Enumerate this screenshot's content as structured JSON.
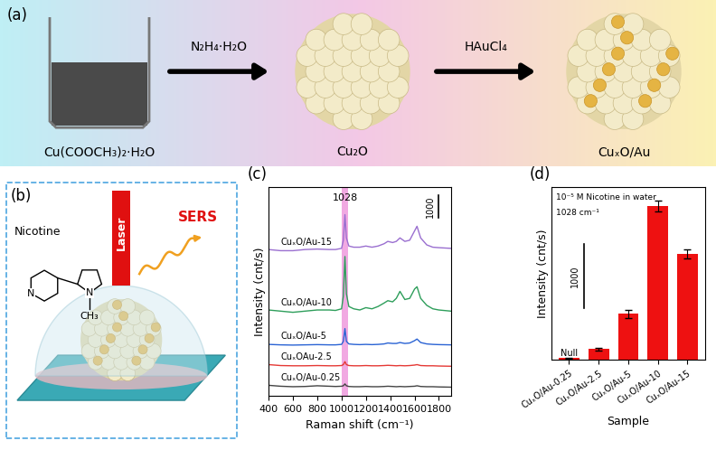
{
  "panel_a": {
    "label": "(a)",
    "species": [
      "Cu(COOCH₃)₂·H₂O",
      "Cu₂O",
      "CuₓO/Au"
    ],
    "reagents": [
      "N₂H₄·H₂O",
      "HAuCl₄"
    ]
  },
  "panel_b": {
    "label": "(b)",
    "molecule": "Nicotine",
    "laser": "Laser",
    "signal": "SERS",
    "atoms": [
      "N",
      "N",
      "CH₃"
    ]
  },
  "chart_data": [
    {
      "type": "line",
      "label": "(c)",
      "x_label": "Raman shift (cm⁻¹)",
      "y_label": "Intensity (cnt/s)",
      "x": [
        400,
        500,
        600,
        700,
        800,
        900,
        950,
        1000,
        1015,
        1028,
        1040,
        1060,
        1100,
        1150,
        1200,
        1250,
        1300,
        1350,
        1380,
        1420,
        1450,
        1480,
        1520,
        1560,
        1600,
        1620,
        1650,
        1700,
        1750,
        1800,
        1900
      ],
      "series": [
        {
          "name": "CuₓO/Au-15",
          "color": "#9a6fd0",
          "values": [
            6300,
            6250,
            6250,
            6300,
            6320,
            6300,
            6300,
            6350,
            6700,
            7800,
            6800,
            6450,
            6400,
            6400,
            6450,
            6400,
            6450,
            6550,
            6650,
            6600,
            6650,
            6800,
            6650,
            6700,
            7100,
            7300,
            6800,
            6500,
            6400,
            6380,
            6350
          ]
        },
        {
          "name": "CuₓO/Au-10",
          "color": "#2e9e5b",
          "values": [
            3700,
            3650,
            3600,
            3650,
            3700,
            3700,
            3680,
            3750,
            4300,
            6000,
            4400,
            3850,
            3750,
            3700,
            3800,
            3750,
            3850,
            4000,
            4100,
            4050,
            4200,
            4500,
            4150,
            4200,
            4600,
            4700,
            4200,
            3900,
            3750,
            3700,
            3650
          ]
        },
        {
          "name": "CuₓO/Au-5",
          "color": "#2a63d4",
          "values": [
            2220,
            2200,
            2190,
            2200,
            2210,
            2200,
            2200,
            2220,
            2350,
            2900,
            2350,
            2240,
            2220,
            2210,
            2220,
            2210,
            2220,
            2240,
            2280,
            2260,
            2260,
            2300,
            2260,
            2280,
            2380,
            2450,
            2300,
            2240,
            2220,
            2210,
            2200
          ]
        },
        {
          "name": "CuₓOAu-2.5",
          "color": "#e53935",
          "values": [
            1350,
            1310,
            1300,
            1300,
            1310,
            1300,
            1300,
            1310,
            1350,
            1480,
            1350,
            1310,
            1300,
            1300,
            1310,
            1300,
            1300,
            1310,
            1320,
            1310,
            1300,
            1310,
            1300,
            1310,
            1330,
            1350,
            1310,
            1300,
            1300,
            1290,
            1280
          ]
        },
        {
          "name": "CuₓO/Au-0.25",
          "color": "#444444",
          "values": [
            460,
            420,
            400,
            410,
            440,
            420,
            410,
            420,
            440,
            520,
            440,
            410,
            400,
            400,
            410,
            400,
            400,
            410,
            420,
            410,
            400,
            410,
            400,
            410,
            420,
            440,
            410,
            400,
            400,
            390,
            380
          ]
        }
      ],
      "xlim": [
        400,
        1900
      ],
      "xticks": [
        400,
        600,
        800,
        1000,
        1200,
        1400,
        1600,
        1800
      ],
      "ylim": [
        0,
        9000
      ],
      "tick_labels": "x",
      "highlight": 1028,
      "scale_bar": 1000
    },
    {
      "type": "bar",
      "label": "(d)",
      "x_label": "Sample",
      "y_label": "Intensity (cnt/s)",
      "categories": [
        "CuₓO/Au-0.25",
        "CuₓO/Au-2.5",
        "CuₓO/Au-5",
        "CuₓO/Au-10",
        "CuₓO/Au-15"
      ],
      "values": [
        30,
        170,
        720,
        2400,
        1650
      ],
      "errors": [
        10,
        20,
        60,
        90,
        70
      ],
      "color": "#ee1111",
      "ylim": [
        0,
        2700
      ],
      "tick_labels": "x",
      "scale_bar": 1000,
      "annotations": [
        "10⁻⁵ M Nicotine in water",
        "1028 cm⁻¹"
      ],
      "bar_notes": [
        {
          "text": "Null",
          "category": "CuₓO/Au-0.25"
        }
      ]
    }
  ]
}
